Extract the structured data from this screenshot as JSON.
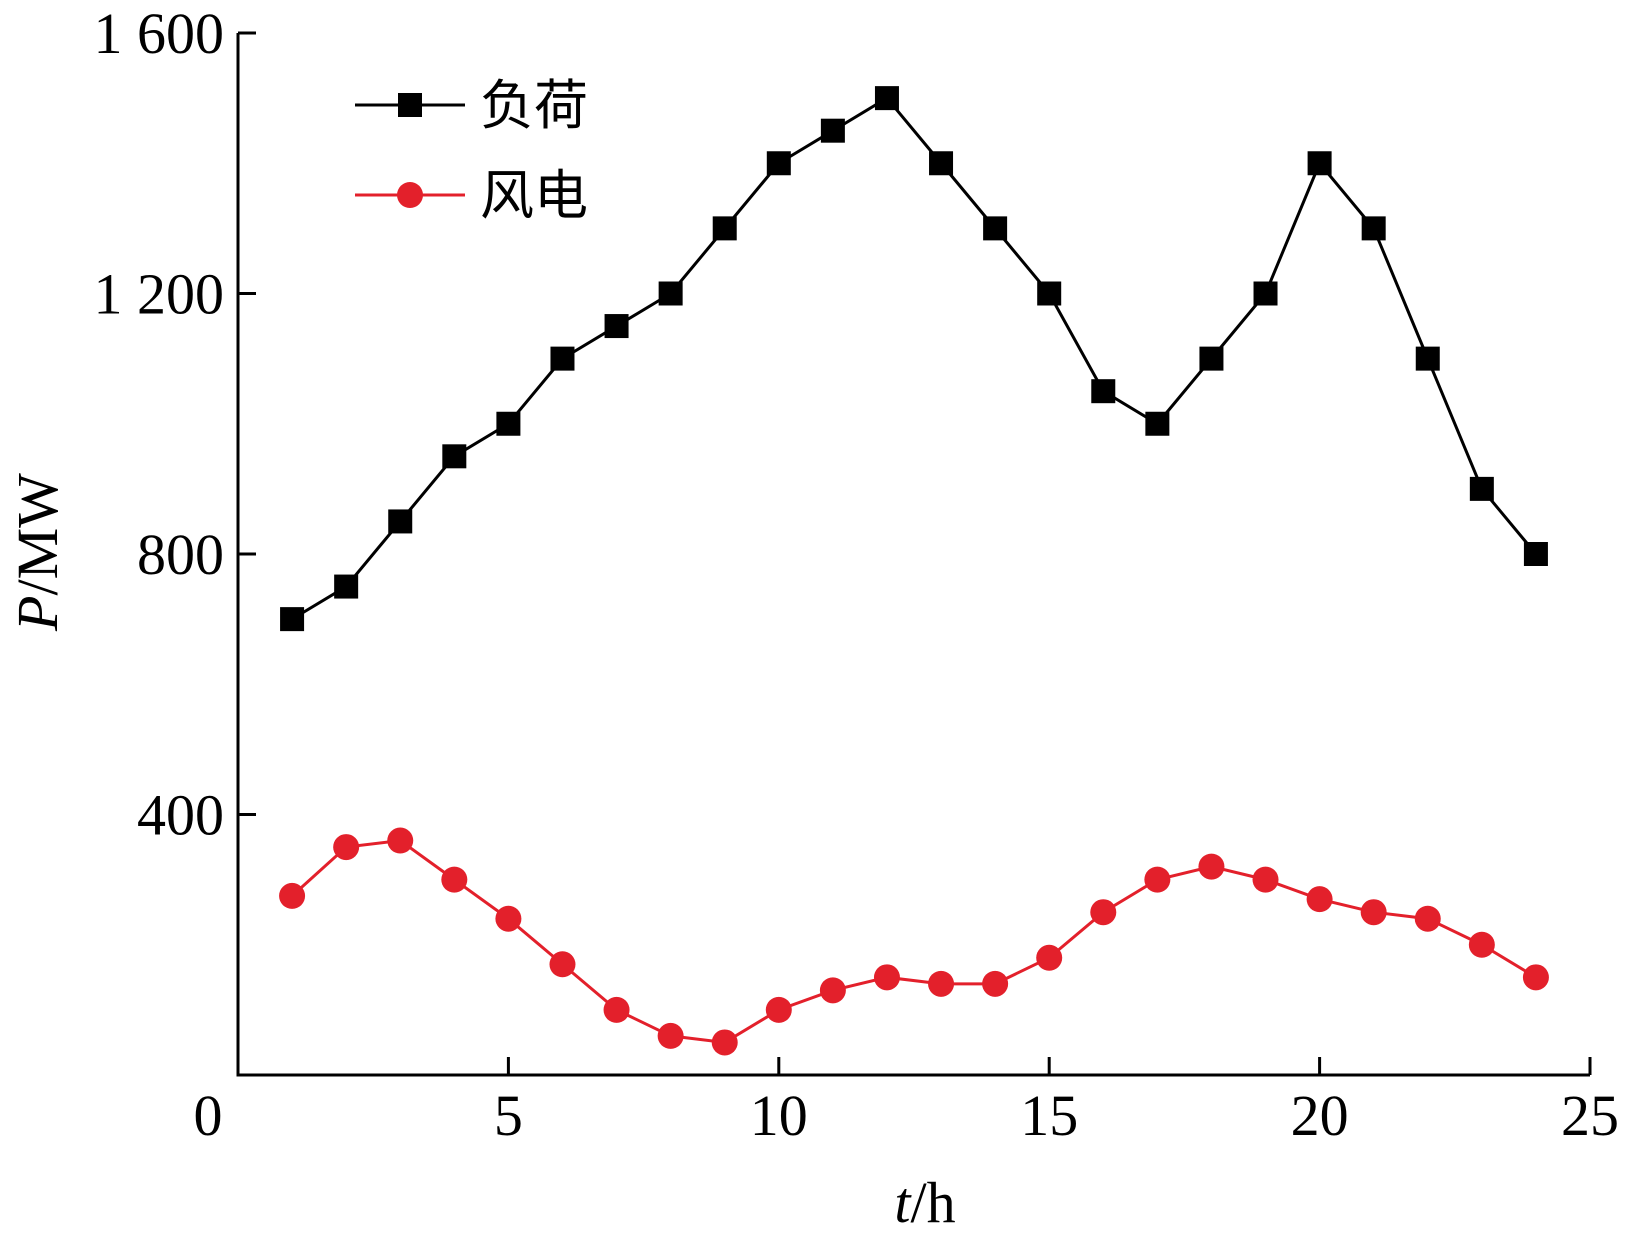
{
  "chart_data": {
    "type": "line",
    "title": "",
    "xlabel": {
      "var": "t",
      "unit": "/h"
    },
    "ylabel": {
      "var": "P",
      "unit": "/MW"
    },
    "xlim": [
      0,
      25
    ],
    "ylim": [
      0,
      1600
    ],
    "x_ticks": [
      0,
      5,
      10,
      15,
      20,
      25
    ],
    "x_tick_labels": [
      "0",
      "5",
      "10",
      "15",
      "20",
      "25"
    ],
    "y_ticks": [
      400,
      800,
      1200,
      1600
    ],
    "y_tick_labels": [
      "400",
      "800",
      "1 200",
      "1 600"
    ],
    "grid": false,
    "legend_position": "top-left",
    "x": [
      1,
      2,
      3,
      4,
      5,
      6,
      7,
      8,
      9,
      10,
      11,
      12,
      13,
      14,
      15,
      16,
      17,
      18,
      19,
      20,
      21,
      22,
      23,
      24
    ],
    "series": [
      {
        "name": "负荷",
        "color": "#000000",
        "marker": "square",
        "values": [
          700,
          750,
          850,
          950,
          1000,
          1100,
          1150,
          1200,
          1300,
          1400,
          1450,
          1500,
          1400,
          1300,
          1200,
          1050,
          1000,
          1100,
          1200,
          1400,
          1300,
          1100,
          900,
          800
        ]
      },
      {
        "name": "风电",
        "color": "#e3202b",
        "marker": "circle",
        "values": [
          275,
          350,
          360,
          300,
          240,
          170,
          100,
          60,
          50,
          100,
          130,
          150,
          140,
          140,
          180,
          250,
          300,
          320,
          300,
          270,
          250,
          240,
          200,
          150
        ]
      }
    ]
  }
}
